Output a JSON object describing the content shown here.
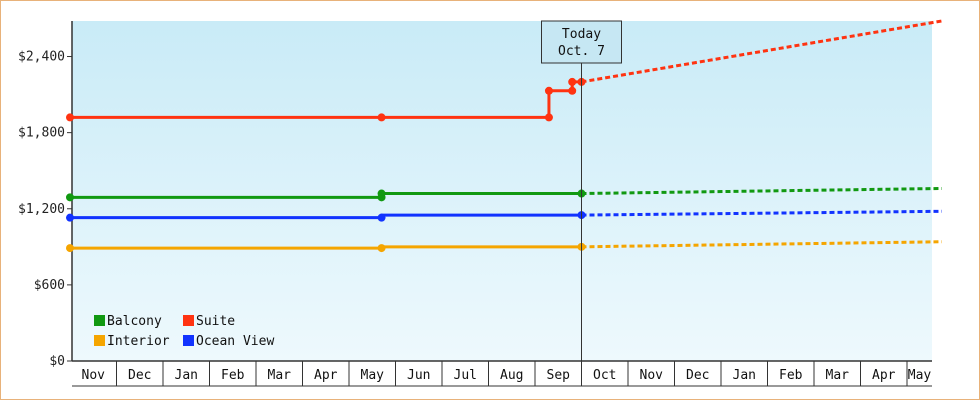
{
  "chart_data": {
    "type": "line",
    "today_label": [
      "Today",
      "Oct. 7"
    ],
    "y_ticks": [
      {
        "value": 0,
        "label": "$0"
      },
      {
        "value": 600,
        "label": "$600"
      },
      {
        "value": 1200,
        "label": "$1,200"
      },
      {
        "value": 1800,
        "label": "$1,800"
      },
      {
        "value": 2400,
        "label": "$2,400"
      }
    ],
    "ylim": [
      0,
      2680
    ],
    "x_ticks": [
      "Nov",
      "Dec",
      "Jan",
      "Feb",
      "Mar",
      "Apr",
      "May",
      "Jun",
      "Jul",
      "Aug",
      "Sep",
      "Oct",
      "Nov",
      "Dec",
      "Jan",
      "Feb",
      "Mar",
      "Apr",
      "May"
    ],
    "xlim": [
      0,
      18.75
    ],
    "today_x": 11,
    "grid": false,
    "legend_position": "bottom-left",
    "series": [
      {
        "name": "Balcony",
        "color": "#119911",
        "actual": [
          [
            0,
            1290
          ],
          [
            6.7,
            1290
          ],
          [
            6.7,
            1320
          ],
          [
            11,
            1320
          ]
        ],
        "markers": [
          [
            0,
            1290
          ],
          [
            6.7,
            1290
          ],
          [
            6.7,
            1320
          ],
          [
            11,
            1320
          ]
        ],
        "forecast": [
          [
            11,
            1320
          ],
          [
            18.75,
            1360
          ]
        ]
      },
      {
        "name": "Suite",
        "color": "#ff3311",
        "actual": [
          [
            0,
            1920
          ],
          [
            6.7,
            1920
          ],
          [
            10.3,
            1920
          ],
          [
            10.3,
            2130
          ],
          [
            10.8,
            2130
          ],
          [
            10.8,
            2200
          ],
          [
            11,
            2200
          ]
        ],
        "markers": [
          [
            0,
            1920
          ],
          [
            6.7,
            1920
          ],
          [
            10.3,
            1920
          ],
          [
            10.3,
            2130
          ],
          [
            10.8,
            2130
          ],
          [
            10.8,
            2200
          ],
          [
            11,
            2200
          ]
        ],
        "forecast": [
          [
            11,
            2200
          ],
          [
            18.75,
            2680
          ]
        ]
      },
      {
        "name": "Interior",
        "color": "#f5a500",
        "actual": [
          [
            0,
            890
          ],
          [
            6.7,
            890
          ],
          [
            6.7,
            900
          ],
          [
            11,
            900
          ]
        ],
        "markers": [
          [
            0,
            890
          ],
          [
            6.7,
            890
          ],
          [
            11,
            900
          ]
        ],
        "forecast": [
          [
            11,
            900
          ],
          [
            18.75,
            940
          ]
        ]
      },
      {
        "name": "Ocean View",
        "color": "#1133ff",
        "actual": [
          [
            0,
            1130
          ],
          [
            6.7,
            1130
          ],
          [
            6.7,
            1150
          ],
          [
            11,
            1150
          ]
        ],
        "markers": [
          [
            0,
            1130
          ],
          [
            6.7,
            1130
          ],
          [
            11,
            1150
          ]
        ],
        "forecast": [
          [
            11,
            1150
          ],
          [
            18.75,
            1180
          ]
        ]
      }
    ],
    "legend_order": [
      "Balcony",
      "Suite",
      "Interior",
      "Ocean View"
    ]
  }
}
